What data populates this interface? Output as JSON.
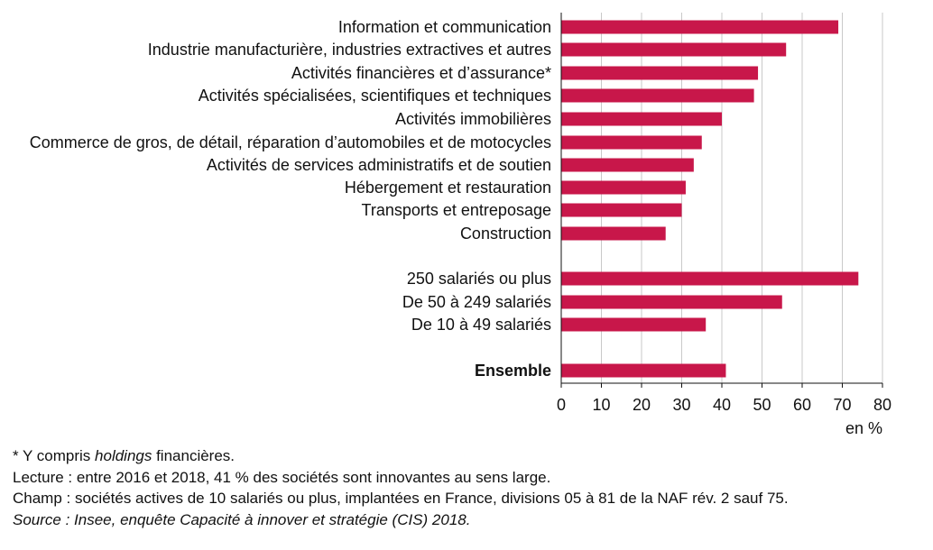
{
  "chart_data": {
    "type": "bar",
    "orientation": "horizontal",
    "bar_color": "#c8174a",
    "categories": [
      "Information et communication",
      "Industrie manufacturière, industries extractives et autres",
      "Activités financières et d’assurance*",
      "Activités spécialisées, scientifiques et techniques",
      "Activités immobilières",
      "Commerce de gros, de détail, réparation d’automobiles et de motocycles",
      "Activités de services administratifs et de soutien",
      "Hébergement et restauration",
      "Transports et entreposage",
      "Construction",
      "250 salariés ou plus",
      "De 50 à 249 salariés",
      "De 10 à 49 salariés",
      "Ensemble"
    ],
    "values": [
      69,
      56,
      49,
      48,
      40,
      35,
      33,
      31,
      30,
      26,
      74,
      55,
      36,
      41
    ],
    "bold_categories": [
      "Ensemble"
    ],
    "xlim": [
      0,
      80
    ],
    "xticks": [
      0,
      10,
      20,
      30,
      40,
      50,
      60,
      70,
      80
    ],
    "xlabel": "en %",
    "grid": "vertical"
  },
  "notes": {
    "footnote_prefix": "* Y compris ",
    "footnote_italic": "holdings",
    "footnote_suffix": " financières.",
    "lecture": "Lecture : entre 2016 et 2018, 41 % des sociétés sont innovantes au sens large.",
    "champ": "Champ : sociétés actives de 10 salariés ou plus, implantées en France, divisions 05 à 81 de la NAF rév. 2 sauf 75.",
    "source": "Source : Insee, enquête Capacité à innover et stratégie (CIS) 2018."
  }
}
